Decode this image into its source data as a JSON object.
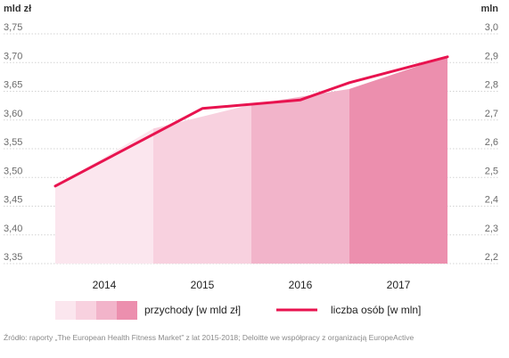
{
  "chart_data": {
    "type": "area+line",
    "categories": [
      "2014",
      "2015",
      "2016",
      "2017"
    ],
    "left_axis": {
      "unit_label": "mld zł",
      "ticks": [
        "3,35",
        "3,40",
        "3,45",
        "3,50",
        "3,55",
        "3,60",
        "3,65",
        "3,70",
        "3,75"
      ],
      "ylim": [
        3.35,
        3.75
      ]
    },
    "right_axis": {
      "unit_label": "mln",
      "ticks": [
        "2,2",
        "2,3",
        "2,4",
        "2,5",
        "2,6",
        "2,7",
        "2,8",
        "2,9",
        "3,0"
      ],
      "ylim": [
        2.2,
        3.0
      ]
    },
    "series": [
      {
        "name": "przychody [w mld zł]",
        "type": "area",
        "axis": "left",
        "x": [
          2013.5,
          2014.5,
          2015.5,
          2016.5,
          2017.5
        ],
        "values": [
          3.485,
          3.585,
          3.627,
          3.654,
          3.711
        ],
        "segment_colors": [
          "#fbe6ee",
          "#f8d1df",
          "#f2b4ca",
          "#ec8fae"
        ]
      },
      {
        "name": "liczba osób [w mln]",
        "type": "line",
        "axis": "right",
        "x": [
          2013.5,
          2015,
          2016,
          2016.5,
          2017.5
        ],
        "values": [
          2.47,
          2.74,
          2.77,
          2.83,
          2.92
        ],
        "color": "#e8134f"
      }
    ],
    "grid": "horizontal-dashed",
    "legend": "bottom"
  },
  "source": "Źródło: raporty „The European Health Fitness Market” z lat 2015-2018; Deloitte we współpracy z organizacją EuropeActive"
}
